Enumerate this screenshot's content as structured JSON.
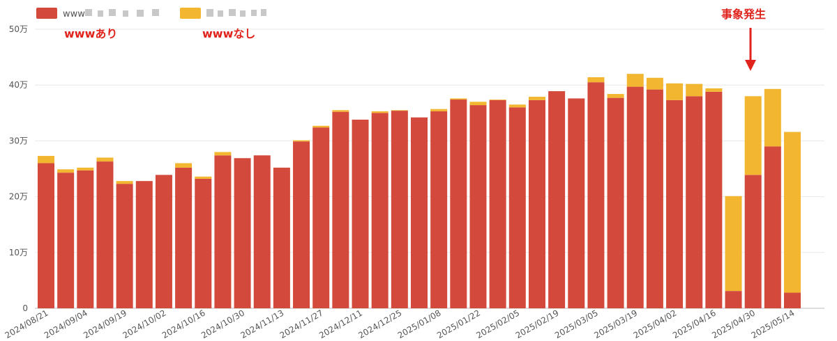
{
  "chart_data": {
    "type": "bar",
    "stacked": true,
    "ylim": [
      0,
      500000
    ],
    "yticks": [
      {
        "value": 0,
        "label": "0"
      },
      {
        "value": 100000,
        "label": "10万"
      },
      {
        "value": 200000,
        "label": "20万"
      },
      {
        "value": 300000,
        "label": "30万"
      },
      {
        "value": 400000,
        "label": "40万"
      },
      {
        "value": 500000,
        "label": "50万"
      }
    ],
    "grid": true,
    "legend_position": "top-left",
    "categories": [
      "2024/08/21",
      "2024/08/28",
      "2024/09/04",
      "2024/09/11",
      "2024/09/19",
      "2024/09/25",
      "2024/10/02",
      "2024/10/09",
      "2024/10/16",
      "2024/10/23",
      "2024/10/30",
      "2024/11/06",
      "2024/11/13",
      "2024/11/20",
      "2024/11/27",
      "2024/12/04",
      "2024/12/11",
      "2024/12/18",
      "2024/12/25",
      "2025/01/01",
      "2025/01/08",
      "2025/01/15",
      "2025/01/22",
      "2025/01/29",
      "2025/02/05",
      "2025/02/12",
      "2025/02/19",
      "2025/02/26",
      "2025/03/05",
      "2025/03/12",
      "2025/03/19",
      "2025/03/26",
      "2025/04/02",
      "2025/04/09",
      "2025/04/16",
      "2025/04/23",
      "2025/04/30",
      "2025/05/07",
      "2025/05/14"
    ],
    "x_labels": [
      "2024/08/21",
      "2024/09/04",
      "2024/09/19",
      "2024/10/02",
      "2024/10/16",
      "2024/10/30",
      "2024/11/13",
      "2024/11/27",
      "2024/12/11",
      "2024/12/25",
      "2025/01/08",
      "2025/01/22",
      "2025/02/05",
      "2025/02/19",
      "2025/03/05",
      "2025/03/19",
      "2025/04/02",
      "2025/04/16",
      "2025/04/30",
      "2025/05/14"
    ],
    "series": [
      {
        "name": "www",
        "color": "#d34a3c",
        "values": [
          260000,
          243000,
          247000,
          263000,
          223000,
          228000,
          239000,
          252000,
          232000,
          274000,
          269000,
          274000,
          252000,
          299000,
          324000,
          352000,
          338000,
          350000,
          354000,
          342000,
          353000,
          374000,
          364000,
          373000,
          360000,
          373000,
          389000,
          376000,
          405000,
          377000,
          397000,
          392000,
          373000,
          380000,
          388000,
          31000,
          239000,
          290000,
          28000
        ]
      },
      {
        "name": "",
        "color": "#f2b630",
        "values": [
          13000,
          6000,
          5000,
          7000,
          5000,
          0,
          0,
          8000,
          4000,
          6000,
          0,
          0,
          0,
          2000,
          3000,
          3000,
          0,
          3000,
          1000,
          0,
          4000,
          2000,
          6000,
          1000,
          5000,
          6000,
          0,
          0,
          9000,
          7000,
          23000,
          21000,
          30000,
          22000,
          6000,
          170000,
          141000,
          103000,
          288000
        ]
      }
    ],
    "annotations": [
      {
        "text": "wwwあり",
        "color": "#e0231c"
      },
      {
        "text": "wwwなし",
        "color": "#e0231c"
      },
      {
        "text": "事象発生",
        "color": "#e0231c",
        "category": "2025/04/23",
        "arrow": "down"
      }
    ]
  }
}
